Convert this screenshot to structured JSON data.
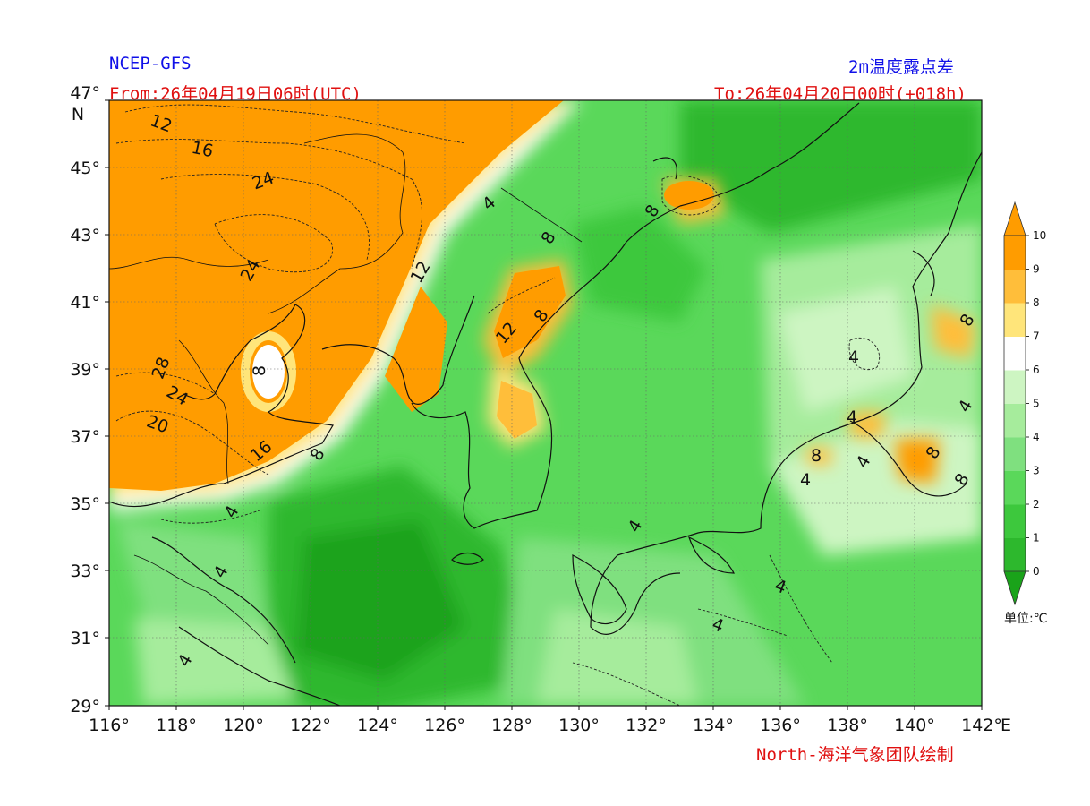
{
  "header": {
    "model": "NCEP-GFS",
    "variable": "2m温度露点差",
    "from_time": "From:26年04月19日06时(UTC)",
    "to_time": "To:26年04月20日00时(+018h)"
  },
  "credit": "North-海洋气象团队绘制",
  "axes": {
    "lat_labels": [
      "47°",
      "45°",
      "43°",
      "41°",
      "39°",
      "37°",
      "35°",
      "33°",
      "31°",
      "29°"
    ],
    "lat_unit": "N",
    "lon_labels": [
      "116°",
      "118°",
      "120°",
      "122°",
      "124°",
      "126°",
      "128°",
      "130°",
      "132°",
      "134°",
      "136°",
      "138°",
      "140°",
      "142°"
    ],
    "lon_unit": "E",
    "lat_range": [
      29,
      47
    ],
    "lon_range": [
      116,
      142
    ]
  },
  "colorbar": {
    "ticks": [
      "0",
      "1",
      "2",
      "3",
      "4",
      "5",
      "6",
      "7",
      "8",
      "9",
      "10"
    ],
    "unit_label": "单位:℃",
    "colors": [
      "#1aa31a",
      "#2db82d",
      "#3dc83d",
      "#5ad85a",
      "#7fe07f",
      "#a6ec9c",
      "#cdf5c2",
      "#ffffff",
      "#ffe57a",
      "#ffbe3a",
      "#ff9c00"
    ]
  },
  "contour_labels": [
    "12",
    "16",
    "24",
    "24",
    "28",
    "24",
    "20",
    "16",
    "12",
    "12",
    "8",
    "8",
    "8",
    "8",
    "8",
    "4",
    "4",
    "4",
    "4",
    "4",
    "4",
    "4",
    "4",
    "4",
    "4",
    "4",
    "4",
    "8",
    "8",
    "8",
    "8"
  ]
}
